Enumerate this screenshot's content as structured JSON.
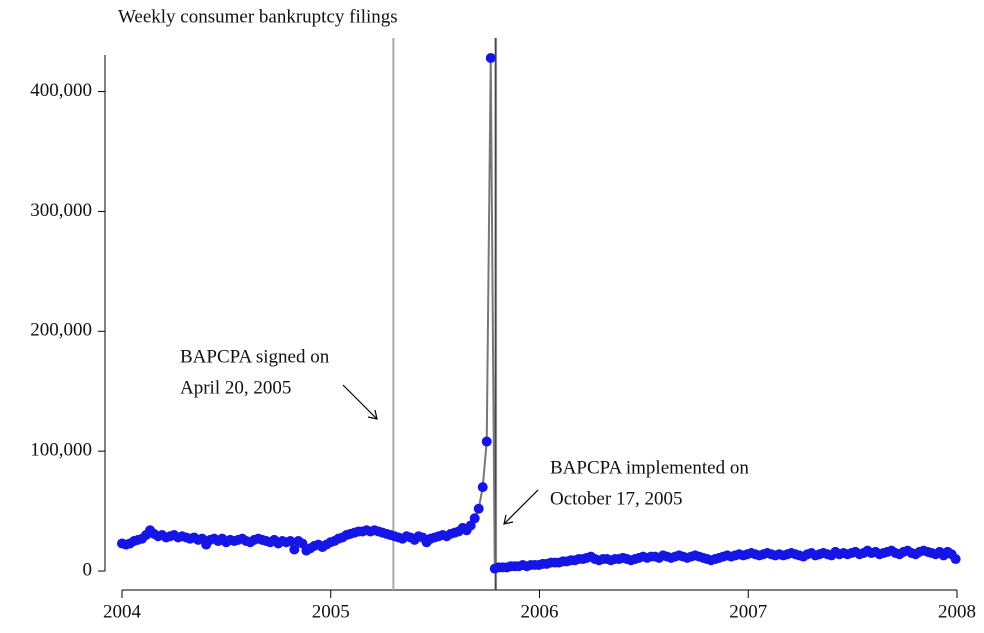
{
  "chart_data": {
    "type": "line",
    "title": "Weekly consumer bankruptcy filings",
    "x": [
      2004,
      2004.0192,
      2004.0384,
      2004.0576,
      2004.0768,
      2004.096,
      2004.1152,
      2004.1344,
      2004.1536,
      2004.1728,
      2004.192,
      2004.2112,
      2004.2304,
      2004.2496,
      2004.2688,
      2004.288,
      2004.3072,
      2004.3264,
      2004.3456,
      2004.3648,
      2004.384,
      2004.4032,
      2004.4224,
      2004.4416,
      2004.4608,
      2004.48,
      2004.4992,
      2004.5184,
      2004.5376,
      2004.5568,
      2004.576,
      2004.5952,
      2004.6144,
      2004.6336,
      2004.6528,
      2004.672,
      2004.6912,
      2004.7104,
      2004.7296,
      2004.7488,
      2004.768,
      2004.7872,
      2004.8064,
      2004.8256,
      2004.8448,
      2004.864,
      2004.8832,
      2004.9024,
      2004.9216,
      2004.9408,
      2004.96,
      2004.9792,
      2004.9984,
      2005.0176,
      2005.0368,
      2005.056,
      2005.0752,
      2005.0944,
      2005.1136,
      2005.1328,
      2005.152,
      2005.1712,
      2005.1904,
      2005.2096,
      2005.2288,
      2005.248,
      2005.2672,
      2005.2864,
      2005.3056,
      2005.3248,
      2005.344,
      2005.3632,
      2005.3824,
      2005.4016,
      2005.4208,
      2005.44,
      2005.4592,
      2005.4784,
      2005.4976,
      2005.5168,
      2005.536,
      2005.5552,
      2005.5744,
      2005.5936,
      2005.6128,
      2005.632,
      2005.6512,
      2005.6704,
      2005.6896,
      2005.7088,
      2005.728,
      2005.7472,
      2005.7664,
      2005.7856,
      2005.8048,
      2005.824,
      2005.8432,
      2005.8624,
      2005.8816,
      2005.9008,
      2005.92,
      2005.9392,
      2005.9584,
      2005.9776,
      2005.9968,
      2006.016,
      2006.0352,
      2006.0544,
      2006.0736,
      2006.0928,
      2006.112,
      2006.1312,
      2006.1504,
      2006.1696,
      2006.1888,
      2006.208,
      2006.2272,
      2006.2464,
      2006.2656,
      2006.2848,
      2006.304,
      2006.3232,
      2006.3424,
      2006.3616,
      2006.3808,
      2006.4,
      2006.4192,
      2006.4384,
      2006.4576,
      2006.4768,
      2006.496,
      2006.5152,
      2006.5344,
      2006.5536,
      2006.5728,
      2006.592,
      2006.6112,
      2006.6304,
      2006.6496,
      2006.6688,
      2006.688,
      2006.7072,
      2006.7264,
      2006.7456,
      2006.7648,
      2006.784,
      2006.8032,
      2006.8224,
      2006.8416,
      2006.8608,
      2006.88,
      2006.8992,
      2006.9184,
      2006.9376,
      2006.9568,
      2006.976,
      2006.9952,
      2007.0144,
      2007.0336,
      2007.0528,
      2007.072,
      2007.0912,
      2007.1104,
      2007.1296,
      2007.1488,
      2007.168,
      2007.1872,
      2007.2064,
      2007.2256,
      2007.2448,
      2007.264,
      2007.2832,
      2007.3024,
      2007.3216,
      2007.3408,
      2007.36,
      2007.3792,
      2007.3984,
      2007.4176,
      2007.4368,
      2007.456,
      2007.4752,
      2007.4944,
      2007.5136,
      2007.5328,
      2007.552,
      2007.5712,
      2007.5904,
      2007.6096,
      2007.6288,
      2007.648,
      2007.6672,
      2007.6864,
      2007.7056,
      2007.7248,
      2007.744,
      2007.7632,
      2007.7824,
      2007.8016,
      2007.8208,
      2007.84,
      2007.8592,
      2007.8784,
      2007.8976,
      2007.9168,
      2007.936,
      2007.9552,
      2007.9744,
      2007.9936
    ],
    "series": [
      {
        "color": "#1515e6",
        "line_color": "#777777",
        "values": [
          23000,
          22000,
          23000,
          25000,
          26000,
          27000,
          30000,
          34000,
          31000,
          29000,
          30000,
          28000,
          29000,
          30000,
          28000,
          29000,
          28000,
          27000,
          28000,
          26000,
          27000,
          22000,
          26000,
          27000,
          25000,
          27000,
          24000,
          26000,
          25000,
          26000,
          27000,
          25000,
          24000,
          26000,
          27000,
          26000,
          25000,
          24000,
          26000,
          23000,
          25000,
          24000,
          25000,
          18000,
          25000,
          23000,
          17000,
          19000,
          21000,
          22000,
          20000,
          22000,
          24000,
          25000,
          27000,
          28000,
          30000,
          31000,
          32000,
          33000,
          33000,
          34000,
          33000,
          34000,
          33000,
          32000,
          31000,
          30000,
          29000,
          28000,
          27000,
          29000,
          28000,
          26000,
          29000,
          28000,
          24000,
          27000,
          28000,
          29000,
          30000,
          29000,
          31000,
          32000,
          33000,
          36000,
          34000,
          38000,
          44000,
          52000,
          70000,
          108000,
          428000,
          2000,
          3000,
          3000,
          3000,
          4000,
          4000,
          4000,
          5000,
          4000,
          5000,
          5000,
          5000,
          6000,
          6000,
          7000,
          7000,
          7000,
          8000,
          8000,
          9000,
          9000,
          10000,
          10000,
          11000,
          12000,
          10000,
          9000,
          10000,
          10000,
          9000,
          10000,
          10000,
          11000,
          10000,
          9000,
          10000,
          11000,
          12000,
          11000,
          12000,
          12000,
          11000,
          13000,
          12000,
          11000,
          12000,
          13000,
          12000,
          11000,
          12000,
          13000,
          12000,
          11000,
          10000,
          9000,
          10000,
          11000,
          12000,
          13000,
          12000,
          13000,
          14000,
          13000,
          14000,
          15000,
          14000,
          13000,
          14000,
          15000,
          14000,
          13000,
          14000,
          13000,
          14000,
          15000,
          14000,
          13000,
          12000,
          14000,
          15000,
          13000,
          14000,
          15000,
          14000,
          13000,
          16000,
          14000,
          15000,
          14000,
          15000,
          16000,
          14000,
          15000,
          17000,
          15000,
          16000,
          14000,
          15000,
          16000,
          17000,
          15000,
          14000,
          16000,
          17000,
          15000,
          14000,
          16000,
          17000,
          16000,
          15000,
          14000,
          16000,
          13000,
          16000,
          14000,
          10000
        ]
      }
    ],
    "xlim": [
      2004,
      2008
    ],
    "xticks": [
      2004,
      2005,
      2006,
      2007,
      2008
    ],
    "ylim": [
      -15000,
      443000
    ],
    "yticks": [
      0,
      {
        "value": 100000,
        "label": "100,000"
      },
      {
        "value": 200000,
        "label": "200,000"
      },
      {
        "value": 300000,
        "label": "300,000"
      },
      {
        "value": 400000,
        "label": "400,000"
      }
    ],
    "grid": false,
    "vlines": [
      {
        "x": 2005.3,
        "color": "#aaaaaa",
        "text": [
          "BAPCPA signed on",
          "April 20, 2005"
        ]
      },
      {
        "x": 2005.79,
        "color": "#444444",
        "text": [
          "BAPCPA implemented on",
          "October 17, 2005"
        ]
      }
    ]
  }
}
